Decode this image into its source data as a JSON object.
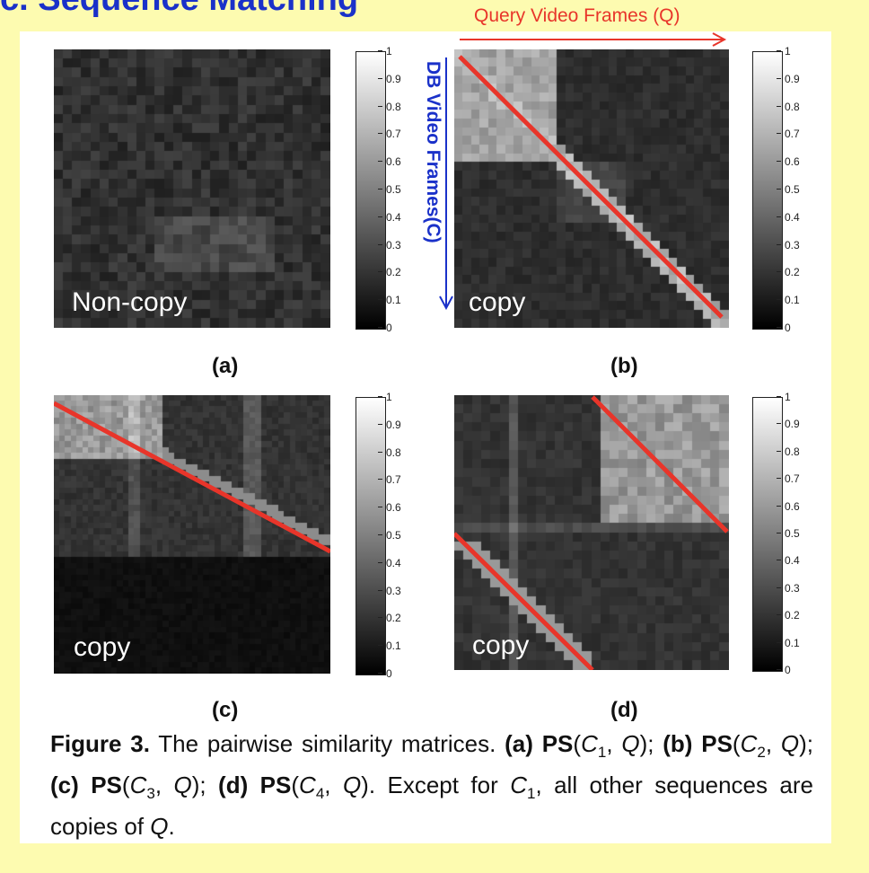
{
  "slide_title": "c. Sequence Matching",
  "axis_labels": {
    "query": "Query Video Frames (Q)",
    "db": "DB Video Frames(C)"
  },
  "colorbar_ticks": [
    "1",
    "0.9",
    "0.8",
    "0.7",
    "0.6",
    "0.5",
    "0.4",
    "0.3",
    "0.2",
    "0.1",
    "0"
  ],
  "panels": [
    {
      "id": "a",
      "sublabel": "(a)",
      "overlay_label": "Non-copy"
    },
    {
      "id": "b",
      "sublabel": "(b)",
      "overlay_label": "copy"
    },
    {
      "id": "c",
      "sublabel": "(c)",
      "overlay_label": "copy"
    },
    {
      "id": "d",
      "sublabel": "(d)",
      "overlay_label": "copy"
    }
  ],
  "caption": {
    "figure_label": "Figure 3.",
    "text_1": " The pairwise similarity matrices. ",
    "a_label": "(a)",
    "ps": "PS",
    "c_var": "C",
    "q_var": "Q",
    "sub_1": "1",
    "sub_2": "2",
    "sub_3": "3",
    "sub_4": "4",
    "b_label": "(b)",
    "c_label": "(c)",
    "d_label": "(d)",
    "text_except": " Except for ",
    "text_end": ", all other sequences are copies of "
  },
  "colors": {
    "slide_bg": "#fdfbb0",
    "title": "#1a31c9",
    "red_line": "#e8352a",
    "db_label": "#1a31c9"
  }
}
